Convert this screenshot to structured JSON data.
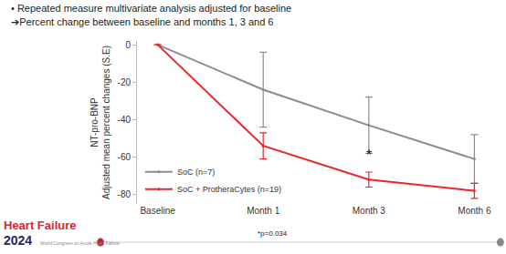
{
  "chart_data": {
    "type": "line",
    "subtitle": [
      "• Repeated measure multivariate analysis adjusted for baseline",
      "➔Percent change between baseline and months 1, 3 and 6"
    ],
    "ylabel": [
      "NT-pro-BNP",
      "Adjusted mean percent changes (S.E)"
    ],
    "categories": [
      "Baseline",
      "Month 1",
      "Month 3",
      "Month 6"
    ],
    "series": [
      {
        "name": "SoC (n=7)",
        "color": "#8c8c8c",
        "values": [
          0,
          -24,
          -43,
          -61
        ],
        "errors": [
          null,
          20,
          15,
          13
        ]
      },
      {
        "name": "SoC + ProtheraCytes (n=19)",
        "color": "#e8262b",
        "values": [
          0,
          -54,
          -72,
          -78
        ],
        "errors": [
          null,
          7,
          4,
          4
        ]
      }
    ],
    "marker": "circle",
    "ylim": [
      -85,
      2
    ],
    "yticks": [
      0,
      -20,
      -40,
      -60,
      -80
    ],
    "grid": false,
    "legend": "lower left",
    "annotations": [
      {
        "text": "*",
        "x": "Month 3",
        "y": -64
      }
    ],
    "footnote": "*p=0.034",
    "logo": {
      "title": "Heart Failure",
      "year": "2024",
      "caption": "World Congress on Acute Heart Failure"
    }
  }
}
